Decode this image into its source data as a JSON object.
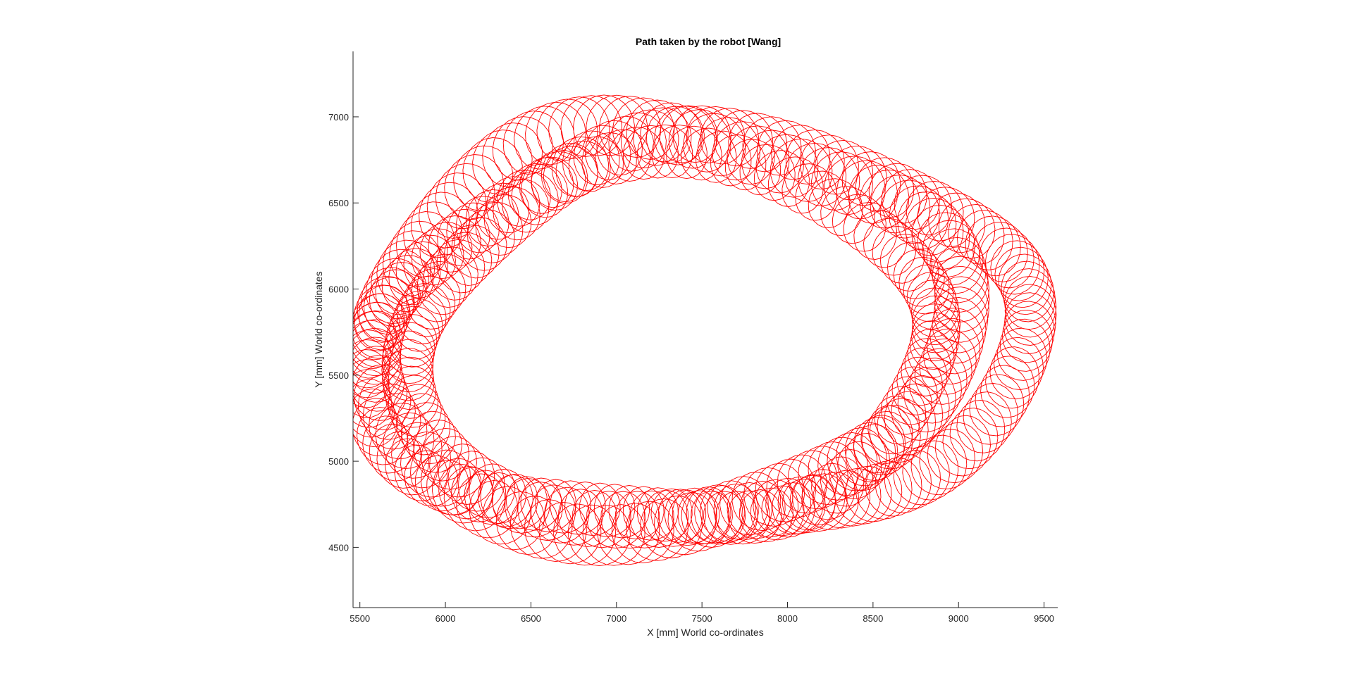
{
  "chart_data": {
    "type": "line",
    "title": "Path taken by the robot [Wang]",
    "xlabel": "X [mm] World co-ordinates",
    "ylabel": "Y [mm] World co-ordinates",
    "xlim": [
      5460,
      9580
    ],
    "ylim": [
      4150,
      7380
    ],
    "xticks": [
      "5500",
      "6000",
      "6500",
      "7000",
      "7500",
      "8000",
      "8500",
      "9000",
      "9500"
    ],
    "yticks": [
      "4500",
      "5000",
      "5500",
      "6000",
      "6500",
      "7000"
    ],
    "grid": false,
    "legend": "none",
    "line_color": "#ff0000",
    "path_description_points": {
      "loop_center_x": [
        7300,
        7600,
        7200
      ],
      "loop_center_y": [
        5760,
        5700,
        5650
      ],
      "loop_radius_x": [
        1700,
        1800,
        1650
      ],
      "loop_radius_y": [
        1150,
        1100,
        1050
      ],
      "wobble_radius": [
        160,
        150,
        140
      ],
      "wobble_cycles": [
        130,
        140,
        125
      ]
    }
  }
}
